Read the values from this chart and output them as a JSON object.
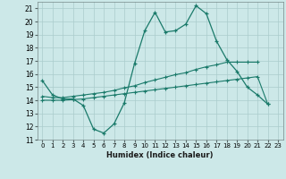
{
  "xlabel": "Humidex (Indice chaleur)",
  "x": [
    0,
    1,
    2,
    3,
    4,
    5,
    6,
    7,
    8,
    9,
    10,
    11,
    12,
    13,
    14,
    15,
    16,
    17,
    18,
    19,
    20,
    21,
    22,
    23
  ],
  "line1": [
    15.5,
    14.4,
    14.1,
    14.1,
    13.6,
    11.8,
    11.5,
    12.2,
    13.8,
    16.8,
    19.3,
    20.7,
    19.2,
    19.3,
    19.8,
    21.2,
    20.6,
    18.5,
    17.1,
    16.2,
    15.0,
    14.4,
    13.7,
    null
  ],
  "line2": [
    14.3,
    14.2,
    14.2,
    14.3,
    14.4,
    14.5,
    14.6,
    14.75,
    14.95,
    15.1,
    15.35,
    15.55,
    15.75,
    15.95,
    16.1,
    16.35,
    16.55,
    16.7,
    16.9,
    16.9,
    16.9,
    16.9,
    null,
    null
  ],
  "line3": [
    14.0,
    14.0,
    14.0,
    14.05,
    14.1,
    14.2,
    14.3,
    14.4,
    14.5,
    14.6,
    14.7,
    14.8,
    14.9,
    15.0,
    15.1,
    15.2,
    15.3,
    15.4,
    15.5,
    15.6,
    15.7,
    15.8,
    13.7,
    null
  ],
  "bg_color": "#cce8e8",
  "grid_color": "#aacccc",
  "line_color": "#1a7a6a",
  "ylim": [
    11,
    21.5
  ],
  "yticks": [
    11,
    12,
    13,
    14,
    15,
    16,
    17,
    18,
    19,
    20,
    21
  ],
  "xticks": [
    0,
    1,
    2,
    3,
    4,
    5,
    6,
    7,
    8,
    9,
    10,
    11,
    12,
    13,
    14,
    15,
    16,
    17,
    18,
    19,
    20,
    21,
    22,
    23
  ]
}
